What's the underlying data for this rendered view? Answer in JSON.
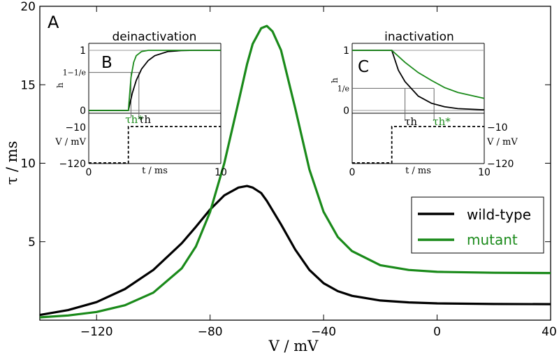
{
  "chart_data": [
    {
      "panel": "A",
      "type": "line",
      "xlabel": "V / mV",
      "ylabel": "τ / ms",
      "xlim": [
        -140,
        40
      ],
      "ylim": [
        0,
        20
      ],
      "xticks": [
        "-120",
        "-80",
        "-40",
        "0",
        "40"
      ],
      "yticks": [
        "5",
        "10",
        "15",
        "20"
      ],
      "legend": {
        "placement": "lower-right",
        "entries": [
          "wild-type",
          "mutant"
        ]
      },
      "series": [
        {
          "name": "wild-type",
          "color": "#000000",
          "x": [
            -140,
            -130,
            -120,
            -110,
            -100,
            -90,
            -85,
            -80,
            -75,
            -70,
            -67,
            -65,
            -62,
            -60,
            -55,
            -50,
            -45,
            -40,
            -35,
            -30,
            -20,
            -10,
            0,
            20,
            40
          ],
          "y": [
            0.33,
            0.64,
            1.15,
            1.98,
            3.2,
            4.9,
            5.95,
            7.05,
            7.95,
            8.45,
            8.55,
            8.45,
            8.1,
            7.6,
            6.1,
            4.5,
            3.2,
            2.35,
            1.85,
            1.55,
            1.25,
            1.13,
            1.07,
            1.03,
            1.02
          ]
        },
        {
          "name": "mutant",
          "color": "#1a8a1a",
          "x": [
            -140,
            -130,
            -120,
            -110,
            -100,
            -90,
            -85,
            -80,
            -75,
            -70,
            -67,
            -65,
            -62,
            -60,
            -58,
            -55,
            -50,
            -45,
            -40,
            -35,
            -30,
            -20,
            -10,
            0,
            20,
            40
          ],
          "y": [
            0.18,
            0.3,
            0.52,
            0.95,
            1.75,
            3.3,
            4.7,
            6.9,
            10.0,
            13.9,
            16.3,
            17.6,
            18.6,
            18.75,
            18.4,
            17.2,
            13.5,
            9.6,
            6.9,
            5.3,
            4.4,
            3.5,
            3.2,
            3.08,
            3.02,
            3.0
          ]
        }
      ]
    },
    {
      "panel": "B",
      "type": "line",
      "title": "deinactivation",
      "xlabel": "t / ms",
      "xlim": [
        0,
        10
      ],
      "xticks": [
        "0",
        "10"
      ],
      "h_axis_label": "h",
      "h_ticks": [
        "1",
        "1−1/e",
        "0"
      ],
      "v_axis_label": "V / mV",
      "v_ticks": [
        "-10",
        "-120"
      ],
      "annotations": [
        "τh*",
        "τh"
      ],
      "series": [
        {
          "name": "",
          "color": "#000000",
          "x": [
            0,
            2.9,
            3.0,
            3.3,
            3.6,
            4.0,
            4.5,
            5.0,
            6.0,
            7.0,
            8.0,
            10.0
          ],
          "y": [
            0,
            0,
            0,
            0.29,
            0.5,
            0.69,
            0.83,
            0.91,
            0.98,
            0.995,
            1,
            1
          ]
        },
        {
          "name": "",
          "color": "#1a8a1a",
          "x": [
            0,
            2.9,
            3.0,
            3.2,
            3.4,
            3.6,
            4.0,
            4.5,
            5.0,
            6.0,
            10.0
          ],
          "y": [
            0,
            0,
            0,
            0.55,
            0.8,
            0.91,
            0.98,
            1,
            1,
            1,
            1
          ]
        }
      ],
      "voltage_trace": {
        "x": [
          0,
          3.0,
          3.0,
          10.0
        ],
        "v": [
          -120,
          -120,
          -10,
          -10
        ]
      }
    },
    {
      "panel": "C",
      "type": "line",
      "title": "inactivation",
      "xlabel": "t / ms",
      "xlim": [
        0,
        10
      ],
      "xticks": [
        "0",
        "10"
      ],
      "h_axis_label": "h",
      "h_ticks": [
        "1",
        "1/e",
        "0"
      ],
      "v_axis_label": "V / mV",
      "v_ticks": [
        "-10",
        "-120"
      ],
      "annotations": [
        "τh",
        "τh*"
      ],
      "series": [
        {
          "name": "",
          "color": "#000000",
          "x": [
            0,
            3.0,
            3.0,
            3.5,
            4.0,
            5.0,
            6.0,
            7.0,
            8.0,
            10.0
          ],
          "y": [
            1,
            1,
            1,
            0.67,
            0.48,
            0.24,
            0.12,
            0.06,
            0.03,
            0.01
          ]
        },
        {
          "name": "",
          "color": "#1a8a1a",
          "x": [
            0,
            3.0,
            3.0,
            4.0,
            5.0,
            6.0,
            7.0,
            8.0,
            9.0,
            10.0
          ],
          "y": [
            1,
            1,
            1,
            0.8,
            0.63,
            0.5,
            0.38,
            0.3,
            0.25,
            0.2
          ]
        }
      ],
      "voltage_trace": {
        "x": [
          0,
          3.0,
          3.0,
          10.0
        ],
        "v": [
          -120,
          -120,
          -10,
          -10
        ]
      }
    }
  ]
}
